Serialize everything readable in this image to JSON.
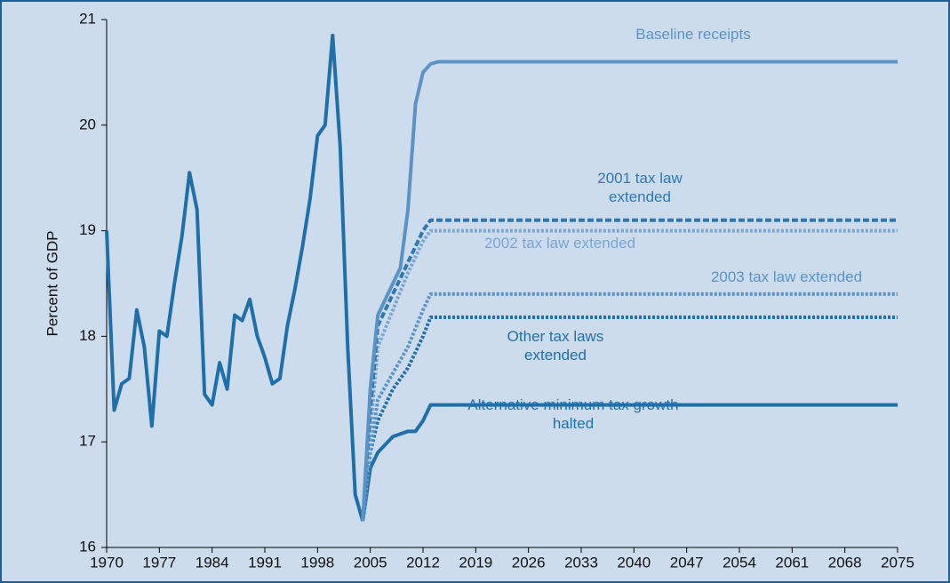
{
  "chart_data": {
    "type": "line",
    "ylabel": "Percent of GDP",
    "xlim": [
      1970,
      2075
    ],
    "xticks": [
      1970,
      1977,
      1984,
      1991,
      1998,
      2005,
      2012,
      2019,
      2026,
      2033,
      2040,
      2047,
      2054,
      2061,
      2068,
      2075
    ],
    "ylim": [
      16,
      21
    ],
    "yticks": [
      16,
      17,
      18,
      19,
      20,
      21
    ],
    "series": [
      {
        "color": "#1f6fa8",
        "style": "solid",
        "x": [
          1970,
          1971,
          1972,
          1973,
          1974,
          1975,
          1976,
          1977,
          1978,
          1979,
          1980,
          1981,
          1982,
          1983,
          1984,
          1985,
          1986,
          1987,
          1988,
          1989,
          1990,
          1991,
          1992,
          1993,
          1994,
          1995,
          1996,
          1997,
          1998,
          1999,
          2000,
          2001,
          2002,
          2003,
          2004
        ],
        "values": [
          19.0,
          17.3,
          17.55,
          17.6,
          18.25,
          17.9,
          17.15,
          18.05,
          18.0,
          18.5,
          18.95,
          19.55,
          19.2,
          17.45,
          17.35,
          17.75,
          17.5,
          18.2,
          18.15,
          18.35,
          18.0,
          17.8,
          17.55,
          17.6,
          18.1,
          18.45,
          18.85,
          19.3,
          19.9,
          20.0,
          20.85,
          19.8,
          17.9,
          16.5,
          16.25
        ]
      },
      {
        "name": "Baseline receipts",
        "color": "#5b93c7",
        "style": "solid",
        "x": [
          2004,
          2005,
          2006,
          2007,
          2008,
          2009,
          2010,
          2011,
          2012,
          2013,
          2014,
          2075
        ],
        "values": [
          16.25,
          17.5,
          18.2,
          18.35,
          18.5,
          18.65,
          19.2,
          20.2,
          20.5,
          20.58,
          20.6,
          20.6
        ]
      },
      {
        "name": "2001 tax law extended",
        "color": "#2f78b4",
        "style": "dashed",
        "x": [
          2004,
          2005,
          2006,
          2008,
          2010,
          2012,
          2013,
          2075
        ],
        "values": [
          16.25,
          17.3,
          18.1,
          18.4,
          18.7,
          19.0,
          19.1,
          19.1
        ]
      },
      {
        "name": "2002 tax law extended",
        "color": "#7aa6d3",
        "style": "dotted",
        "x": [
          2004,
          2005,
          2006,
          2008,
          2010,
          2012,
          2013,
          2075
        ],
        "values": [
          16.25,
          17.1,
          17.9,
          18.25,
          18.6,
          18.9,
          19.0,
          19.0
        ]
      },
      {
        "name": "2003 tax law extended",
        "color": "#5b93c7",
        "style": "dotted",
        "x": [
          2004,
          2005,
          2006,
          2008,
          2010,
          2012,
          2013,
          2075
        ],
        "values": [
          16.25,
          16.9,
          17.4,
          17.65,
          17.9,
          18.25,
          18.4,
          18.4
        ]
      },
      {
        "name": "Other tax laws extended",
        "color": "#1f6fa8",
        "style": "dotted",
        "x": [
          2004,
          2005,
          2006,
          2008,
          2010,
          2012,
          2013,
          2075
        ],
        "values": [
          16.25,
          16.9,
          17.2,
          17.5,
          17.7,
          18.0,
          18.18,
          18.18
        ]
      },
      {
        "name": "Alternative minimum tax growth halted",
        "color": "#1f6fa8",
        "style": "solid",
        "x": [
          2004,
          2005,
          2006,
          2008,
          2010,
          2011,
          2012,
          2013,
          2075
        ],
        "values": [
          16.25,
          16.75,
          16.9,
          17.05,
          17.1,
          17.1,
          17.2,
          17.35,
          17.35
        ]
      }
    ]
  }
}
